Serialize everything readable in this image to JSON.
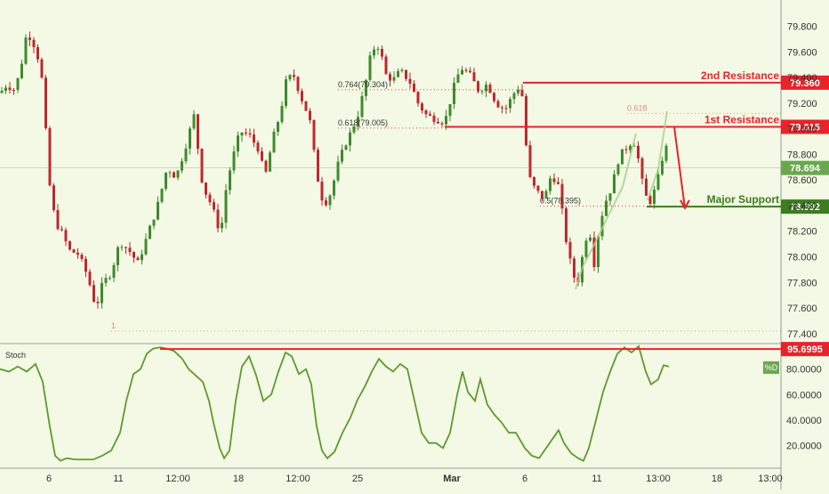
{
  "colors": {
    "background": "#f3f9e4",
    "up_candle": "#3f8a2e",
    "down_candle": "#c0272d",
    "resistance": "#e8232a",
    "support": "#3c7d1e",
    "stoch_line": "#5e9a2e",
    "fib_line": "#e8232a",
    "axis_text": "#333333",
    "current_price_bg": "#6aa84f"
  },
  "chart_data": [
    {
      "type": "candlestick",
      "title": "",
      "xlabel": "",
      "ylabel": "",
      "ylim": [
        77.35,
        79.95
      ],
      "x_tick_labels": [
        "6",
        "11",
        "12:00",
        "18",
        "12:00",
        "25",
        "Mar",
        "6",
        "11",
        "13:00",
        "18",
        "13:00"
      ],
      "y_tick_labels": [
        "77.400",
        "77.600",
        "77.800",
        "78.000",
        "78.200",
        "78.400",
        "78.600",
        "78.800",
        "79.000",
        "79.200",
        "79.400",
        "79.600",
        "79.800"
      ],
      "grid": false,
      "price_path": [
        [
          0,
          79.28
        ],
        [
          8,
          79.35
        ],
        [
          15,
          79.3
        ],
        [
          22,
          79.42
        ],
        [
          30,
          79.75
        ],
        [
          36,
          79.7
        ],
        [
          42,
          79.58
        ],
        [
          48,
          79.35
        ],
        [
          55,
          78.6
        ],
        [
          62,
          78.28
        ],
        [
          70,
          78.18
        ],
        [
          78,
          78.05
        ],
        [
          88,
          78.02
        ],
        [
          98,
          77.86
        ],
        [
          108,
          77.6
        ],
        [
          115,
          77.78
        ],
        [
          125,
          77.88
        ],
        [
          135,
          78.12
        ],
        [
          145,
          78.05
        ],
        [
          155,
          77.95
        ],
        [
          165,
          78.15
        ],
        [
          178,
          78.42
        ],
        [
          188,
          78.7
        ],
        [
          198,
          78.62
        ],
        [
          208,
          78.85
        ],
        [
          218,
          79.1
        ],
        [
          228,
          78.55
        ],
        [
          238,
          78.4
        ],
        [
          248,
          78.18
        ],
        [
          255,
          78.58
        ],
        [
          262,
          78.78
        ],
        [
          270,
          78.98
        ],
        [
          280,
          78.95
        ],
        [
          290,
          78.85
        ],
        [
          298,
          78.62
        ],
        [
          306,
          78.9
        ],
        [
          315,
          79.12
        ],
        [
          322,
          79.38
        ],
        [
          330,
          79.42
        ],
        [
          340,
          79.22
        ],
        [
          348,
          79.08
        ],
        [
          356,
          78.65
        ],
        [
          364,
          78.4
        ],
        [
          372,
          78.5
        ],
        [
          380,
          78.72
        ],
        [
          388,
          78.88
        ],
        [
          395,
          78.98
        ],
        [
          402,
          79.1
        ],
        [
          410,
          79.32
        ],
        [
          418,
          79.62
        ],
        [
          426,
          79.65
        ],
        [
          434,
          79.42
        ],
        [
          442,
          79.38
        ],
        [
          450,
          79.45
        ],
        [
          460,
          79.38
        ],
        [
          470,
          79.2
        ],
        [
          480,
          79.1
        ],
        [
          490,
          79.08
        ],
        [
          500,
          79.05
        ],
        [
          510,
          79.32
        ],
        [
          518,
          79.48
        ],
        [
          528,
          79.42
        ],
        [
          538,
          79.3
        ],
        [
          548,
          79.35
        ],
        [
          558,
          79.2
        ],
        [
          568,
          79.15
        ],
        [
          578,
          79.28
        ],
        [
          586,
          79.35
        ],
        [
          590,
          78.98
        ],
        [
          595,
          78.62
        ],
        [
          602,
          78.52
        ],
        [
          612,
          78.45
        ],
        [
          620,
          78.65
        ],
        [
          628,
          78.55
        ],
        [
          636,
          78.15
        ],
        [
          644,
          77.85
        ],
        [
          650,
          77.82
        ],
        [
          656,
          78.05
        ],
        [
          662,
          78.25
        ],
        [
          668,
          77.95
        ],
        [
          674,
          78.25
        ],
        [
          680,
          78.42
        ],
        [
          688,
          78.55
        ],
        [
          696,
          78.78
        ],
        [
          704,
          78.85
        ],
        [
          712,
          78.92
        ],
        [
          718,
          78.75
        ],
        [
          724,
          78.5
        ],
        [
          730,
          78.42
        ],
        [
          738,
          78.55
        ],
        [
          744,
          78.75
        ],
        [
          748,
          78.9
        ],
        [
          752,
          78.7
        ]
      ],
      "levels": [
        {
          "label": "2nd Resistance",
          "value": 79.36,
          "value_label": "79.360",
          "x_start": 588
        },
        {
          "label": "1st Resistance",
          "value": 79.015,
          "value_label": "79.015",
          "x_start": 500
        },
        {
          "label": "Major Support",
          "value": 78.392,
          "value_label": "78.392",
          "x_start": 727
        }
      ],
      "fib_levels": [
        {
          "label": "0.764(79.304)",
          "value": 79.304,
          "x_start": 380,
          "x_end": 588
        },
        {
          "label": "0.618(79.005)",
          "value": 79.005,
          "x_start": 380,
          "x_end": 500
        },
        {
          "label": "0.5(78.395)",
          "value": 78.395,
          "x_start": 607,
          "x_end": 727
        },
        {
          "label": "0.618",
          "value": 79.12,
          "x_start": 705,
          "x_end": 880
        },
        {
          "label": "1",
          "value": 77.42,
          "x_start": 125,
          "x_end": 880
        }
      ],
      "current_price": {
        "value": 78.694,
        "label": "78.694"
      },
      "projection": [
        {
          "x": 758,
          "value": 79.015
        },
        {
          "x": 770,
          "value": 78.38
        }
      ]
    },
    {
      "type": "line",
      "title": "Stoch",
      "series_name": "%D",
      "ylim": [
        5,
        100
      ],
      "y_tick_labels": [
        "20.0000",
        "40.0000",
        "60.0000",
        "80.0000"
      ],
      "level": {
        "value": 95.6995,
        "label": "95.6995"
      },
      "points": [
        [
          0,
          80
        ],
        [
          10,
          78
        ],
        [
          20,
          82
        ],
        [
          30,
          78
        ],
        [
          40,
          84
        ],
        [
          48,
          70
        ],
        [
          56,
          35
        ],
        [
          62,
          12
        ],
        [
          68,
          8
        ],
        [
          75,
          10
        ],
        [
          85,
          9
        ],
        [
          95,
          9
        ],
        [
          105,
          9
        ],
        [
          115,
          12
        ],
        [
          125,
          16
        ],
        [
          135,
          30
        ],
        [
          142,
          55
        ],
        [
          150,
          76
        ],
        [
          158,
          80
        ],
        [
          165,
          92
        ],
        [
          172,
          96
        ],
        [
          180,
          97
        ],
        [
          188,
          96
        ],
        [
          196,
          94
        ],
        [
          205,
          88
        ],
        [
          212,
          80
        ],
        [
          220,
          75
        ],
        [
          228,
          70
        ],
        [
          235,
          55
        ],
        [
          240,
          38
        ],
        [
          247,
          18
        ],
        [
          252,
          10
        ],
        [
          258,
          16
        ],
        [
          265,
          55
        ],
        [
          272,
          82
        ],
        [
          280,
          90
        ],
        [
          288,
          75
        ],
        [
          296,
          55
        ],
        [
          305,
          60
        ],
        [
          313,
          78
        ],
        [
          321,
          93
        ],
        [
          328,
          90
        ],
        [
          336,
          76
        ],
        [
          344,
          80
        ],
        [
          350,
          68
        ],
        [
          356,
          35
        ],
        [
          362,
          16
        ],
        [
          368,
          10
        ],
        [
          376,
          15
        ],
        [
          385,
          30
        ],
        [
          394,
          42
        ],
        [
          402,
          56
        ],
        [
          410,
          66
        ],
        [
          418,
          78
        ],
        [
          426,
          88
        ],
        [
          434,
          82
        ],
        [
          442,
          78
        ],
        [
          450,
          84
        ],
        [
          458,
          80
        ],
        [
          466,
          55
        ],
        [
          474,
          30
        ],
        [
          482,
          22
        ],
        [
          490,
          22
        ],
        [
          498,
          18
        ],
        [
          506,
          30
        ],
        [
          514,
          60
        ],
        [
          520,
          78
        ],
        [
          526,
          62
        ],
        [
          534,
          55
        ],
        [
          540,
          72
        ],
        [
          548,
          52
        ],
        [
          556,
          44
        ],
        [
          564,
          38
        ],
        [
          572,
          30
        ],
        [
          580,
          30
        ],
        [
          590,
          18
        ],
        [
          598,
          12
        ],
        [
          606,
          10
        ],
        [
          614,
          18
        ],
        [
          622,
          26
        ],
        [
          628,
          32
        ],
        [
          634,
          22
        ],
        [
          642,
          14
        ],
        [
          650,
          10
        ],
        [
          656,
          8
        ],
        [
          662,
          18
        ],
        [
          670,
          40
        ],
        [
          678,
          62
        ],
        [
          686,
          78
        ],
        [
          694,
          92
        ],
        [
          702,
          97
        ],
        [
          710,
          93
        ],
        [
          718,
          98
        ],
        [
          726,
          78
        ],
        [
          732,
          68
        ],
        [
          740,
          72
        ],
        [
          746,
          83
        ],
        [
          752,
          82
        ]
      ]
    }
  ],
  "stoch_label": "Stoch",
  "d_badge": "%D"
}
